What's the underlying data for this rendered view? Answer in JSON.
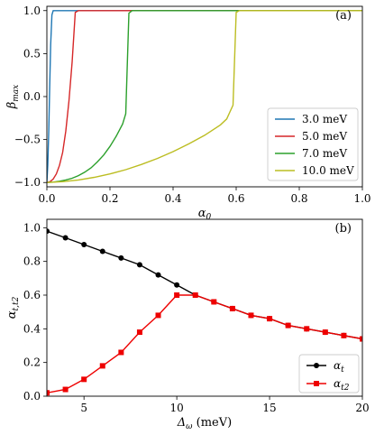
{
  "chart_data": [
    {
      "type": "line",
      "panel_label": "(a)",
      "xlabel": "α",
      "xlabel_sub": "0",
      "ylabel": "β",
      "ylabel_sub": "max",
      "xlim": [
        0,
        1
      ],
      "ylim": [
        -1.05,
        1.05
      ],
      "xticks": [
        0,
        0.2,
        0.4,
        0.6,
        0.8,
        1
      ],
      "xtick_labels": [
        "0.0",
        "0.2",
        "0.4",
        "0.6",
        "0.8",
        "1.0"
      ],
      "yticks": [
        -1,
        -0.5,
        0,
        0.5,
        1
      ],
      "ytick_labels": [
        "−1.0",
        "−0.5",
        "0.0",
        "0.5",
        "1.0"
      ],
      "grid": false,
      "legend_position": "bottom-right",
      "series": [
        {
          "name": "3.0 meV",
          "color": "#1f77b4",
          "x": [
            0,
            0.003,
            0.006,
            0.009,
            0.012,
            0.016,
            0.02,
            1.0
          ],
          "y": [
            -1.0,
            -0.8,
            -0.4,
            0.1,
            0.6,
            0.95,
            1.0,
            1.0
          ]
        },
        {
          "name": "5.0 meV",
          "color": "#d62728",
          "x": [
            0,
            0.01,
            0.02,
            0.03,
            0.04,
            0.05,
            0.06,
            0.07,
            0.08,
            0.09,
            0.1,
            1.0
          ],
          "y": [
            -1.0,
            -0.99,
            -0.96,
            -0.9,
            -0.8,
            -0.65,
            -0.4,
            -0.05,
            0.4,
            0.98,
            1.0,
            1.0
          ]
        },
        {
          "name": "7.0 meV",
          "color": "#2ca02c",
          "x": [
            0,
            0.02,
            0.04,
            0.06,
            0.08,
            0.1,
            0.12,
            0.14,
            0.16,
            0.18,
            0.2,
            0.22,
            0.24,
            0.25,
            0.26,
            0.27,
            1.0
          ],
          "y": [
            -1.0,
            -0.995,
            -0.985,
            -0.97,
            -0.95,
            -0.92,
            -0.88,
            -0.83,
            -0.76,
            -0.68,
            -0.58,
            -0.46,
            -0.32,
            -0.2,
            0.97,
            1.0,
            1.0
          ]
        },
        {
          "name": "10.0 meV",
          "color": "#bcbd22",
          "x": [
            0,
            0.05,
            0.1,
            0.15,
            0.2,
            0.25,
            0.3,
            0.35,
            0.4,
            0.45,
            0.5,
            0.55,
            0.57,
            0.59,
            0.6,
            0.61,
            1.0
          ],
          "y": [
            -1.0,
            -0.99,
            -0.97,
            -0.94,
            -0.9,
            -0.85,
            -0.79,
            -0.72,
            -0.64,
            -0.55,
            -0.45,
            -0.33,
            -0.26,
            -0.1,
            0.98,
            1.0,
            1.0
          ]
        }
      ]
    },
    {
      "type": "line",
      "panel_label": "(b)",
      "xlabel": "Δ",
      "xlabel_sub": "ω",
      "xlabel_unit": " (meV)",
      "ylabel": "α",
      "ylabel_sub": "t,t2",
      "xlim": [
        3,
        20
      ],
      "ylim": [
        0,
        1.05
      ],
      "xticks": [
        5,
        10,
        15,
        20
      ],
      "xtick_labels": [
        "5",
        "10",
        "15",
        "20"
      ],
      "yticks": [
        0,
        0.2,
        0.4,
        0.6,
        0.8,
        1
      ],
      "ytick_labels": [
        "0.0",
        "0.2",
        "0.4",
        "0.6",
        "0.8",
        "1.0"
      ],
      "grid": false,
      "legend_position": "bottom-right",
      "series": [
        {
          "name": "α",
          "name_sub": "t",
          "color": "#000000",
          "marker": "circle",
          "x": [
            3,
            4,
            5,
            6,
            7,
            8,
            9,
            10,
            11,
            12,
            13,
            14,
            15,
            16,
            17,
            18,
            19,
            20
          ],
          "y": [
            0.98,
            0.94,
            0.9,
            0.86,
            0.82,
            0.78,
            0.72,
            0.66,
            0.6,
            0.56,
            0.52,
            0.48,
            0.46,
            0.42,
            0.4,
            0.38,
            0.36,
            0.34
          ]
        },
        {
          "name": "α",
          "name_sub": "t2",
          "color": "#ee0000",
          "marker": "square",
          "x": [
            3,
            4,
            5,
            6,
            7,
            8,
            9,
            10,
            11,
            12,
            13,
            14,
            15,
            16,
            17,
            18,
            19,
            20
          ],
          "y": [
            0.02,
            0.04,
            0.1,
            0.18,
            0.26,
            0.38,
            0.48,
            0.6,
            0.6,
            0.56,
            0.52,
            0.48,
            0.46,
            0.42,
            0.4,
            0.38,
            0.36,
            0.34
          ]
        }
      ]
    }
  ]
}
